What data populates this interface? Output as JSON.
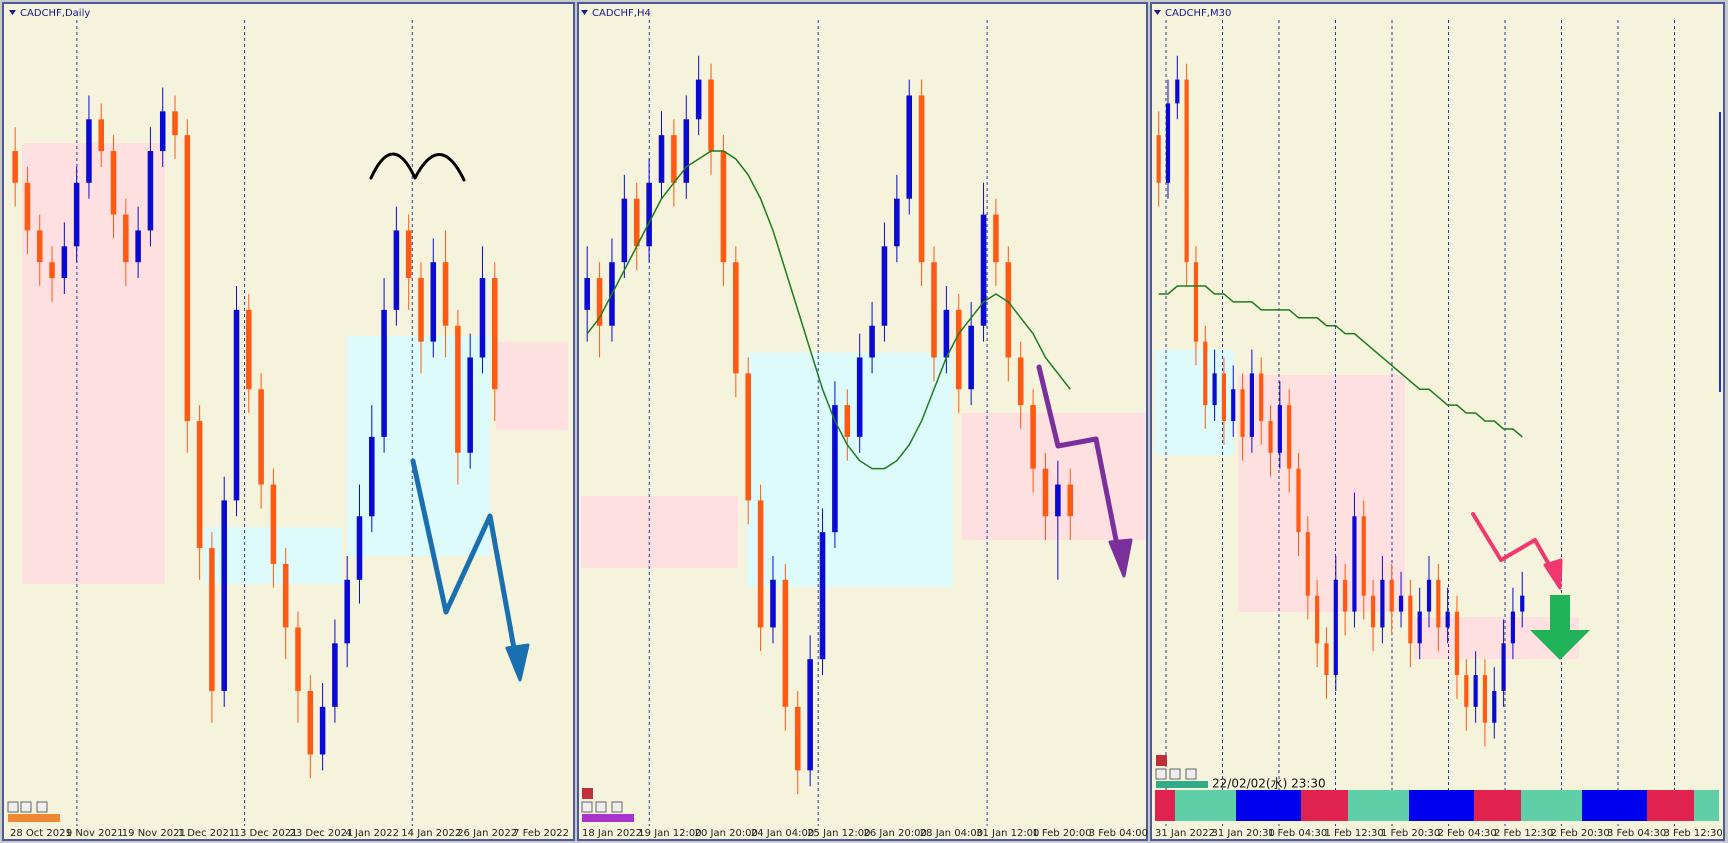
{
  "panels": [
    {
      "title": "CADCHF,Daily",
      "ylim": [
        0,
        100
      ],
      "x_labels": [
        "28 Oct 2021",
        "9 Nov 2021",
        "19 Nov 2021",
        "1 Dec 2021",
        "13 Dec 2021",
        "23 Dec 2021",
        "4 Jan 2022",
        "14 Jan 2022",
        "26 Jan 2022",
        "7 Feb 2022"
      ],
      "candles": [
        [
          84,
          87,
          77,
          80
        ],
        [
          80,
          82,
          71,
          74
        ],
        [
          74,
          76,
          67,
          70
        ],
        [
          70,
          72,
          65,
          68
        ],
        [
          68,
          75,
          66,
          72
        ],
        [
          72,
          82,
          70,
          80
        ],
        [
          80,
          91,
          78,
          88
        ],
        [
          88,
          90,
          82,
          84
        ],
        [
          84,
          86,
          73,
          76
        ],
        [
          76,
          78,
          67,
          70
        ],
        [
          70,
          77,
          68,
          74
        ],
        [
          74,
          87,
          72,
          84
        ],
        [
          84,
          92,
          82,
          89
        ],
        [
          89,
          91,
          83,
          86
        ],
        [
          86,
          88,
          46,
          50
        ],
        [
          50,
          52,
          30,
          34
        ],
        [
          34,
          36,
          12,
          16
        ],
        [
          16,
          43,
          14,
          40
        ],
        [
          40,
          67,
          38,
          64
        ],
        [
          64,
          66,
          51,
          54
        ],
        [
          54,
          56,
          39,
          42
        ],
        [
          42,
          44,
          29,
          32
        ],
        [
          32,
          34,
          20,
          24
        ],
        [
          24,
          26,
          12,
          16
        ],
        [
          16,
          18,
          5,
          8
        ],
        [
          8,
          17,
          6,
          14
        ],
        [
          14,
          25,
          12,
          22
        ],
        [
          22,
          33,
          19,
          30
        ],
        [
          30,
          42,
          27,
          38
        ],
        [
          38,
          52,
          36,
          48
        ],
        [
          48,
          68,
          46,
          64
        ],
        [
          64,
          77,
          62,
          74
        ],
        [
          74,
          76,
          64,
          68
        ],
        [
          68,
          70,
          56,
          60
        ],
        [
          60,
          73,
          58,
          70
        ],
        [
          70,
          74,
          58,
          62
        ],
        [
          62,
          64,
          42,
          46
        ],
        [
          46,
          61,
          44,
          58
        ],
        [
          58,
          72,
          56,
          68
        ],
        [
          68,
          70,
          50,
          54
        ]
      ]
    },
    {
      "title": "CADCHF,H4",
      "ylim": [
        0,
        100
      ],
      "x_labels": [
        "18 Jan 2022",
        "19 Jan 12:00",
        "20 Jan 20:00",
        "24 Jan 04:00",
        "25 Jan 12:00",
        "26 Jan 20:00",
        "28 Jan 04:00",
        "31 Jan 12:00",
        "1 Feb 20:00",
        "3 Feb 04:00"
      ],
      "candles": [
        [
          64,
          72,
          60,
          68
        ],
        [
          68,
          70,
          58,
          62
        ],
        [
          62,
          73,
          60,
          70
        ],
        [
          70,
          81,
          68,
          78
        ],
        [
          78,
          80,
          69,
          72
        ],
        [
          72,
          83,
          70,
          80
        ],
        [
          80,
          89,
          78,
          86
        ],
        [
          86,
          88,
          77,
          80
        ],
        [
          80,
          91,
          78,
          88
        ],
        [
          88,
          96,
          86,
          93
        ],
        [
          93,
          95,
          81,
          84
        ],
        [
          84,
          86,
          67,
          70
        ],
        [
          70,
          72,
          53,
          56
        ],
        [
          56,
          58,
          37,
          40
        ],
        [
          40,
          42,
          21,
          24
        ],
        [
          24,
          33,
          22,
          30
        ],
        [
          30,
          32,
          11,
          14
        ],
        [
          14,
          16,
          3,
          6
        ],
        [
          6,
          23,
          4,
          20
        ],
        [
          20,
          39,
          18,
          36
        ],
        [
          36,
          55,
          34,
          52
        ],
        [
          52,
          54,
          45,
          48
        ],
        [
          48,
          61,
          46,
          58
        ],
        [
          58,
          65,
          56,
          62
        ],
        [
          62,
          75,
          60,
          72
        ],
        [
          72,
          81,
          70,
          78
        ],
        [
          78,
          93,
          76,
          91
        ],
        [
          91,
          93,
          67,
          70
        ],
        [
          70,
          72,
          55,
          58
        ],
        [
          58,
          67,
          56,
          64
        ],
        [
          64,
          66,
          51,
          54
        ],
        [
          54,
          65,
          52,
          62
        ],
        [
          62,
          80,
          60,
          76
        ],
        [
          76,
          78,
          67,
          70
        ],
        [
          70,
          72,
          55,
          58
        ],
        [
          58,
          60,
          49,
          52
        ],
        [
          52,
          54,
          41,
          44
        ],
        [
          44,
          46,
          35,
          38
        ],
        [
          38,
          45,
          30,
          42
        ],
        [
          42,
          44,
          35,
          38
        ]
      ],
      "ma": [
        61,
        63,
        66,
        69,
        72,
        75,
        78,
        80,
        82,
        83,
        84,
        84,
        83,
        81,
        78,
        74,
        69,
        64,
        59,
        54,
        50,
        47,
        45,
        44,
        44,
        45,
        47,
        50,
        54,
        58,
        61,
        63,
        65,
        66,
        65,
        63,
        61,
        58,
        56,
        54
      ]
    },
    {
      "title": "CADCHF,M30",
      "ylim": [
        0,
        100
      ],
      "x_labels": [
        "31 Jan 2022",
        "31 Jan 20:30",
        "1 Feb 04:30",
        "1 Feb 12:30",
        "1 Feb 20:30",
        "2 Feb 04:30",
        "2 Feb 12:30",
        "2 Feb 20:30",
        "3 Feb 04:30",
        "3 Feb 12:30"
      ],
      "candles": [
        [
          86,
          89,
          77,
          80
        ],
        [
          80,
          93,
          78,
          90
        ],
        [
          90,
          96,
          88,
          93
        ],
        [
          93,
          95,
          67,
          70
        ],
        [
          70,
          72,
          57,
          60
        ],
        [
          60,
          62,
          49,
          52
        ],
        [
          52,
          59,
          50,
          56
        ],
        [
          56,
          58,
          47,
          50
        ],
        [
          50,
          57,
          48,
          54
        ],
        [
          54,
          56,
          45,
          48
        ],
        [
          48,
          59,
          46,
          56
        ],
        [
          56,
          58,
          47,
          50
        ],
        [
          50,
          52,
          43,
          46
        ],
        [
          46,
          55,
          44,
          52
        ],
        [
          52,
          54,
          41,
          44
        ],
        [
          44,
          46,
          33,
          36
        ],
        [
          36,
          38,
          25,
          28
        ],
        [
          28,
          30,
          19,
          22
        ],
        [
          22,
          24,
          15,
          18
        ],
        [
          18,
          33,
          16,
          30
        ],
        [
          30,
          32,
          23,
          26
        ],
        [
          26,
          41,
          24,
          38
        ],
        [
          38,
          40,
          25,
          28
        ],
        [
          28,
          30,
          21,
          24
        ],
        [
          24,
          33,
          22,
          30
        ],
        [
          30,
          32,
          23,
          26
        ],
        [
          26,
          31,
          24,
          28
        ],
        [
          28,
          30,
          19,
          22
        ],
        [
          22,
          29,
          20,
          26
        ],
        [
          26,
          33,
          24,
          30
        ],
        [
          30,
          32,
          21,
          24
        ],
        [
          24,
          29,
          22,
          26
        ],
        [
          26,
          28,
          15,
          18
        ],
        [
          18,
          20,
          11,
          14
        ],
        [
          14,
          21,
          12,
          18
        ],
        [
          18,
          20,
          9,
          12
        ],
        [
          12,
          19,
          10,
          16
        ],
        [
          16,
          25,
          14,
          22
        ],
        [
          22,
          29,
          20,
          26
        ],
        [
          26,
          31,
          24,
          28
        ]
      ],
      "ma": [
        66,
        66,
        67,
        67,
        67,
        67,
        66,
        66,
        65,
        65,
        65,
        64,
        64,
        64,
        64,
        63,
        63,
        63,
        62,
        62,
        61,
        61,
        60,
        59,
        58,
        57,
        56,
        55,
        54,
        54,
        53,
        52,
        52,
        51,
        51,
        50,
        50,
        49,
        49,
        48
      ]
    }
  ],
  "up_color": "#0a0ad2",
  "down_color": "#ff5a14",
  "ma_color": "#1e7a1e",
  "timestamp": "22/02/02(水) 23:30"
}
